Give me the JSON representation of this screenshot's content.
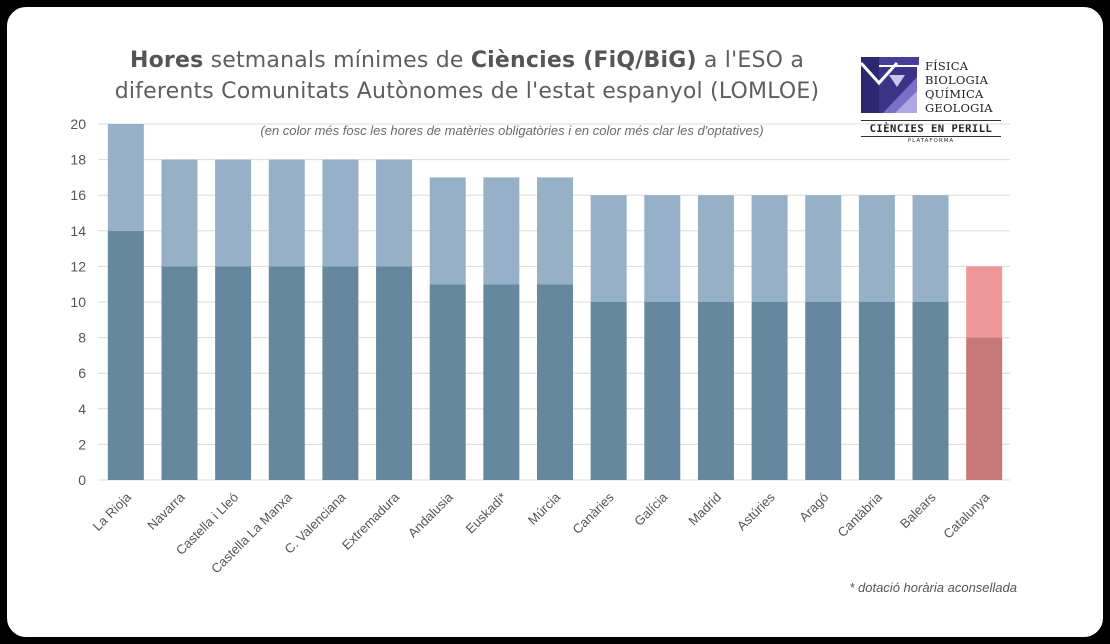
{
  "title": {
    "line1": [
      {
        "text": "Hores",
        "bold": true
      },
      {
        "text": " setmanals mínimes de ",
        "bold": false
      },
      {
        "text": "Ciències (FiQ/BiG)",
        "bold": true
      },
      {
        "text": " a l'ESO a",
        "bold": false
      }
    ],
    "line2": "diferents Comunitats Autònomes de l'estat espanyol (LOMLOE)"
  },
  "subtitle": "(en color més fosc les hores de matèries obligatòries i en color més clar les d'optatives)",
  "logo": {
    "words": [
      "FÍSICA",
      "BIOLOGIA",
      "QUÍMICA",
      "GEOLOGIA"
    ],
    "tagline": "CIÈNCIES EN PERILL",
    "subline": "PLATAFORMA"
  },
  "footnote": "* dotació horària aconsellada",
  "colors": {
    "mandatory": "#66889e",
    "optional": "#96b0c8",
    "highlight_mandatory": "#c77879",
    "highlight_optional": "#ee9698",
    "grid": "#dcdcdc",
    "axis_text": "#555555"
  },
  "chart_data": {
    "type": "bar",
    "stacked": true,
    "categories": [
      "La Rioja",
      "Navarra",
      "Castella i Lleó",
      "Castella La Manxa",
      "C. Valenciana",
      "Extremadura",
      "Andalusia",
      "Euskadi*",
      "Múrcia",
      "Canàries",
      "Galícia",
      "Madrid",
      "Astúries",
      "Aragó",
      "Cantàbria",
      "Balears",
      "Catalunya"
    ],
    "series": [
      {
        "values": [
          14,
          12,
          12,
          12,
          12,
          12,
          11,
          11,
          11,
          10,
          10,
          10,
          10,
          10,
          10,
          10,
          8
        ]
      },
      {
        "values": [
          6,
          6,
          6,
          6,
          6,
          6,
          6,
          6,
          6,
          6,
          6,
          6,
          6,
          6,
          6,
          6,
          4
        ]
      }
    ],
    "highlight_category": "Catalunya",
    "ylim": [
      0,
      20
    ],
    "yticks": [
      0,
      2,
      4,
      6,
      8,
      10,
      12,
      14,
      16,
      18,
      20
    ],
    "grid": true,
    "xlabel": "",
    "ylabel": ""
  }
}
